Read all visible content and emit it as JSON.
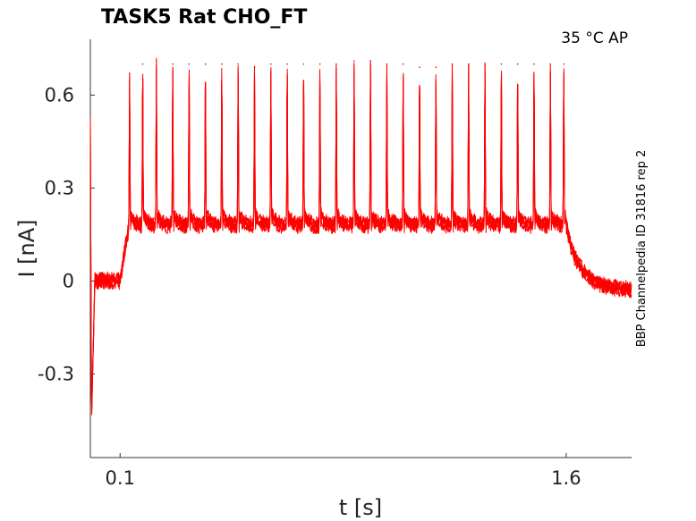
{
  "chart_data": {
    "type": "line",
    "title": "TASK5  Rat  CHO_FT",
    "condition": "35 °C  AP",
    "side_label": "BBP Channelpedia ID 31816 rep 2",
    "xlabel": "t [s]",
    "ylabel": "I [nA]",
    "xlim": [
      0.0,
      1.82
    ],
    "ylim": [
      -0.57,
      0.78
    ],
    "x_ticks": [
      {
        "value": 0.1,
        "label": "0.1"
      },
      {
        "value": 1.6,
        "label": "1.6"
      }
    ],
    "y_ticks": [
      {
        "value": 0.6,
        "label": "0.6"
      },
      {
        "value": 0.3,
        "label": "0.3"
      },
      {
        "value": 0,
        "label": "0"
      },
      {
        "value": -0.3,
        "label": "-0.3"
      }
    ],
    "grid": false,
    "line_color": "#ff0000",
    "stimulus": {
      "start_s": 0.1,
      "end_s": 1.6
    },
    "baseline_nA": 0.0,
    "steady_state_nA": 0.16,
    "post_stimulus_nA": -0.03,
    "spike_peaks": [
      {
        "t": 0.132,
        "peak": 0.67
      },
      {
        "t": 0.176,
        "peak": 0.7
      },
      {
        "t": 0.222,
        "peak": 0.71
      },
      {
        "t": 0.277,
        "peak": 0.7
      },
      {
        "t": 0.332,
        "peak": 0.7
      },
      {
        "t": 0.387,
        "peak": 0.7
      },
      {
        "t": 0.442,
        "peak": 0.7
      },
      {
        "t": 0.497,
        "peak": 0.7
      },
      {
        "t": 0.552,
        "peak": 0.69
      },
      {
        "t": 0.607,
        "peak": 0.7
      },
      {
        "t": 0.662,
        "peak": 0.7
      },
      {
        "t": 0.717,
        "peak": 0.7
      },
      {
        "t": 0.772,
        "peak": 0.7
      },
      {
        "t": 0.827,
        "peak": 0.7
      },
      {
        "t": 0.887,
        "peak": 0.71
      },
      {
        "t": 0.942,
        "peak": 0.71
      },
      {
        "t": 0.997,
        "peak": 0.7
      },
      {
        "t": 1.052,
        "peak": 0.7
      },
      {
        "t": 1.107,
        "peak": 0.69
      },
      {
        "t": 1.162,
        "peak": 0.69
      },
      {
        "t": 1.217,
        "peak": 0.7
      },
      {
        "t": 1.272,
        "peak": 0.7
      },
      {
        "t": 1.327,
        "peak": 0.7
      },
      {
        "t": 1.382,
        "peak": 0.7
      },
      {
        "t": 1.437,
        "peak": 0.7
      },
      {
        "t": 1.492,
        "peak": 0.7
      },
      {
        "t": 1.547,
        "peak": 0.7
      },
      {
        "t": 1.592,
        "peak": 0.7
      }
    ]
  }
}
